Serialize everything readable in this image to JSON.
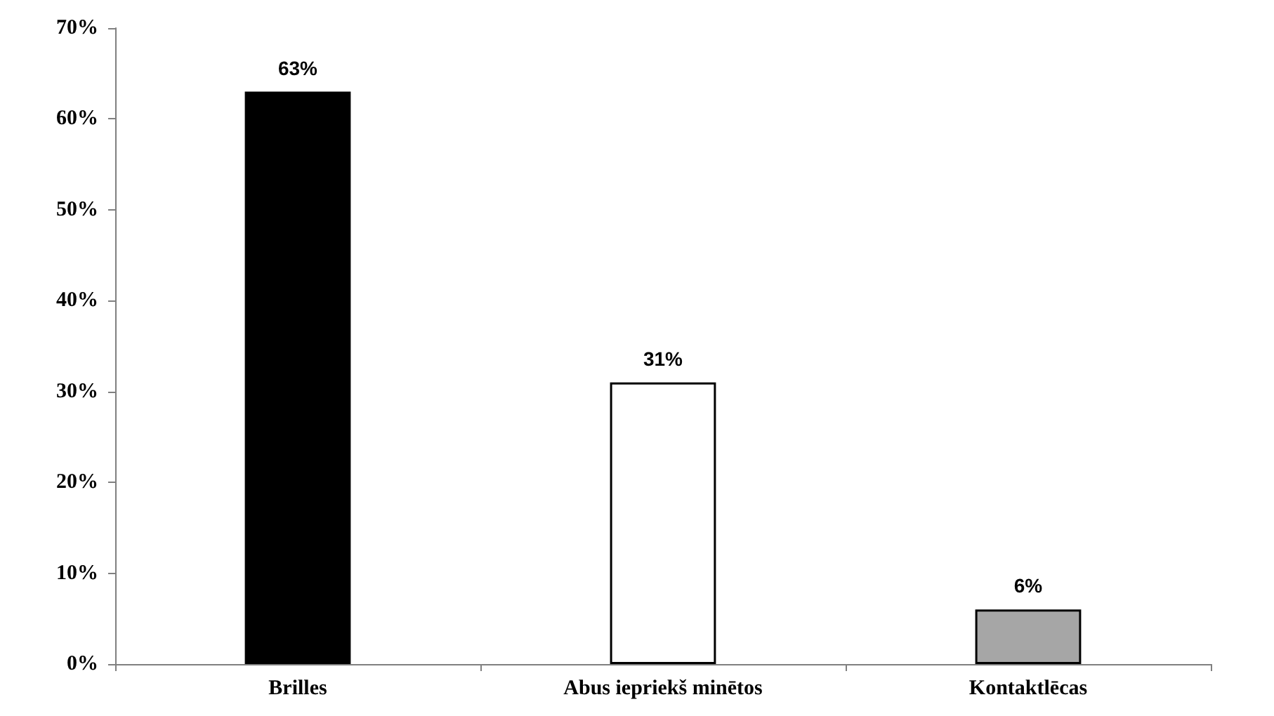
{
  "chart_data": {
    "type": "bar",
    "categories": [
      "Brilles",
      "Abus iepriekš minētos",
      "Kontaktlēcas"
    ],
    "values": [
      63,
      31,
      6
    ],
    "colors": [
      "#000000",
      "#ffffff",
      "#a6a6a6"
    ],
    "value_labels": [
      "63%",
      "31%",
      "6%"
    ],
    "ylim": [
      0,
      70
    ],
    "yticks": [
      {
        "value": 0,
        "label": "0%"
      },
      {
        "value": 10,
        "label": "10%"
      },
      {
        "value": 20,
        "label": "20%"
      },
      {
        "value": 30,
        "label": "30%"
      },
      {
        "value": 40,
        "label": "40%"
      },
      {
        "value": 50,
        "label": "50%"
      },
      {
        "value": 60,
        "label": "60%"
      },
      {
        "value": 70,
        "label": "70%"
      }
    ],
    "grid": false
  }
}
